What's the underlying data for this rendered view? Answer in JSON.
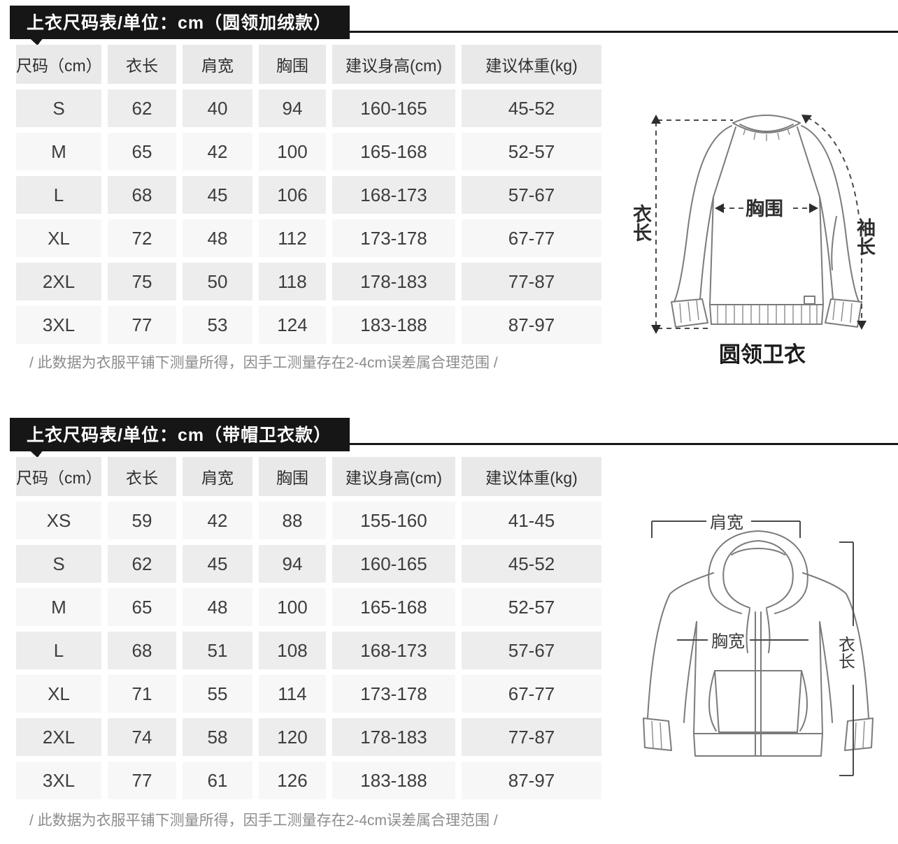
{
  "section1": {
    "banner": "上衣尺码表/单位：cm（圆领加绒款）",
    "table": {
      "headers": [
        "尺码（cm）",
        "衣长",
        "肩宽",
        "胸围",
        "建议身高(cm)",
        "建议体重(kg)"
      ],
      "rows": [
        [
          "S",
          "62",
          "40",
          "94",
          "160-165",
          "45-52"
        ],
        [
          "M",
          "65",
          "42",
          "100",
          "165-168",
          "52-57"
        ],
        [
          "L",
          "68",
          "45",
          "106",
          "168-173",
          "57-67"
        ],
        [
          "XL",
          "72",
          "48",
          "112",
          "173-178",
          "67-77"
        ],
        [
          "2XL",
          "75",
          "50",
          "118",
          "178-183",
          "77-87"
        ],
        [
          "3XL",
          "77",
          "53",
          "124",
          "183-188",
          "87-97"
        ]
      ]
    },
    "footnote": "/ 此数据为衣服平铺下测量所得，因手工测量存在2-4cm误差属合理范围 /",
    "diagram": {
      "caption": "圆领卫衣",
      "labels": {
        "length": "衣长",
        "chest": "胸围",
        "sleeve": "袖长"
      }
    }
  },
  "section2": {
    "banner": "上衣尺码表/单位：cm（带帽卫衣款）",
    "table": {
      "headers": [
        "尺码（cm）",
        "衣长",
        "肩宽",
        "胸围",
        "建议身高(cm)",
        "建议体重(kg)"
      ],
      "rows": [
        [
          "XS",
          "59",
          "42",
          "88",
          "155-160",
          "41-45"
        ],
        [
          "S",
          "62",
          "45",
          "94",
          "160-165",
          "45-52"
        ],
        [
          "M",
          "65",
          "48",
          "100",
          "165-168",
          "52-57"
        ],
        [
          "L",
          "68",
          "51",
          "108",
          "168-173",
          "57-67"
        ],
        [
          "XL",
          "71",
          "55",
          "114",
          "173-178",
          "67-77"
        ],
        [
          "2XL",
          "74",
          "58",
          "120",
          "178-183",
          "77-87"
        ],
        [
          "3XL",
          "77",
          "61",
          "126",
          "183-188",
          "87-97"
        ]
      ]
    },
    "footnote": "/ 此数据为衣服平铺下测量所得，因手工测量存在2-4cm误差属合理范围 /",
    "diagram": {
      "labels": {
        "shoulder": "肩宽",
        "chest": "胸宽",
        "length": "衣长"
      }
    }
  },
  "colors": {
    "banner_bg": "#161616",
    "cell_gray": "#ededed",
    "cell_light": "#f7f7f7",
    "header_bg": "#e9e9e9"
  }
}
